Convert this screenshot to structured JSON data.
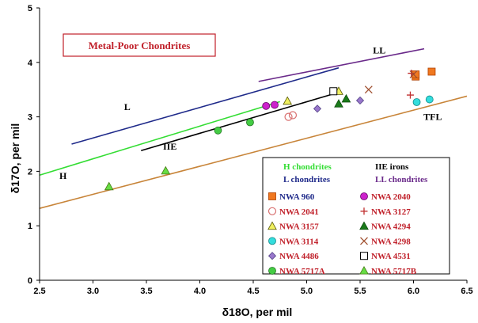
{
  "chart_data": {
    "type": "scatter",
    "title": "Metal-Poor Chondrites",
    "title_color": "#c0202a",
    "xlabel": "δ18O, per mil",
    "ylabel": "δ17O, per mil",
    "xlim": [
      2.5,
      6.5
    ],
    "ylim": [
      0,
      5
    ],
    "x_ticks": [
      "2.5",
      "3.0",
      "3.5",
      "4.0",
      "4.5",
      "5.0",
      "5.5",
      "6.0",
      "6.5"
    ],
    "y_ticks": [
      "0",
      "1",
      "2",
      "3",
      "4",
      "5"
    ],
    "grid": false,
    "legend_placement": "bottom-right",
    "reference_lines": [
      {
        "label": "TFL",
        "color": "#c8853a",
        "points": [
          [
            2.5,
            1.32
          ],
          [
            6.5,
            3.38
          ]
        ]
      },
      {
        "label": "H",
        "color": "#33dd33",
        "points": [
          [
            2.5,
            1.93
          ],
          [
            4.75,
            3.28
          ]
        ]
      },
      {
        "label": "L",
        "color": "#1f2a8a",
        "points": [
          [
            2.8,
            2.5
          ],
          [
            5.3,
            3.9
          ]
        ]
      },
      {
        "label": "LL",
        "color": "#6a2a8a",
        "points": [
          [
            4.55,
            3.65
          ],
          [
            6.1,
            4.25
          ]
        ]
      },
      {
        "label": "IIE",
        "color": "#000000",
        "points": [
          [
            3.45,
            2.38
          ],
          [
            5.3,
            3.45
          ]
        ]
      }
    ],
    "series": [
      {
        "name": "NWA 960",
        "marker": "square",
        "color": "#f07820",
        "stroke": "#b04000",
        "filled": true,
        "points": [
          [
            6.02,
            3.74
          ],
          [
            6.02,
            3.78
          ],
          [
            6.17,
            3.83
          ]
        ]
      },
      {
        "name": "NWA 2040",
        "marker": "circle",
        "color": "#cc22cc",
        "stroke": "#660066",
        "filled": true,
        "points": [
          [
            4.62,
            3.2
          ],
          [
            4.7,
            3.22
          ]
        ]
      },
      {
        "name": "NWA 2041",
        "marker": "circle",
        "color": "#d87070",
        "stroke": "#d87070",
        "filled": false,
        "points": [
          [
            4.83,
            3.0
          ],
          [
            4.87,
            3.03
          ]
        ]
      },
      {
        "name": "NWA 3127",
        "marker": "plus",
        "color": "#c03030",
        "stroke": "#c03030",
        "filled": false,
        "points": [
          [
            5.97,
            3.4
          ],
          [
            5.98,
            3.8
          ]
        ]
      },
      {
        "name": "NWA 3157",
        "marker": "triangle",
        "color": "#f0f060",
        "stroke": "#555500",
        "filled": true,
        "points": [
          [
            4.82,
            3.29
          ],
          [
            5.3,
            3.47
          ]
        ]
      },
      {
        "name": "NWA 4294",
        "marker": "triangle",
        "color": "#1a7a1a",
        "stroke": "#0a4a0a",
        "filled": true,
        "points": [
          [
            5.3,
            3.24
          ],
          [
            5.37,
            3.33
          ]
        ]
      },
      {
        "name": "NWA 3114",
        "marker": "circle",
        "color": "#33dddd",
        "stroke": "#118888",
        "filled": true,
        "points": [
          [
            6.03,
            3.27
          ],
          [
            6.15,
            3.32
          ]
        ]
      },
      {
        "name": "NWA 4298",
        "marker": "x",
        "color": "#a05030",
        "stroke": "#a05030",
        "filled": false,
        "points": [
          [
            5.58,
            3.5
          ],
          [
            6.0,
            3.78
          ]
        ]
      },
      {
        "name": "NWA 4486",
        "marker": "diamond",
        "color": "#9977cc",
        "stroke": "#554488",
        "filled": true,
        "points": [
          [
            5.1,
            3.15
          ],
          [
            5.5,
            3.3
          ]
        ]
      },
      {
        "name": "NWA 4531",
        "marker": "square",
        "color": "#ffffff",
        "stroke": "#000000",
        "filled": false,
        "points": [
          [
            5.25,
            3.47
          ]
        ]
      },
      {
        "name": "NWA 5717A",
        "marker": "circle",
        "color": "#44cc44",
        "stroke": "#227722",
        "filled": true,
        "points": [
          [
            4.17,
            2.75
          ],
          [
            4.47,
            2.9
          ]
        ]
      },
      {
        "name": "NWA 5717B",
        "marker": "triangle",
        "color": "#66dd44",
        "stroke": "#447711",
        "filled": true,
        "points": [
          [
            3.15,
            1.72
          ],
          [
            3.68,
            2.01
          ]
        ]
      }
    ],
    "legend": {
      "header": [
        {
          "text": "H chondrites",
          "color": "#33dd33"
        },
        {
          "text": "IIE irons",
          "color": "#000000"
        },
        {
          "text": "L chondrites",
          "color": "#1f2a8a"
        },
        {
          "text": "LL chondrites",
          "color": "#6a2a8a"
        }
      ],
      "entries": [
        {
          "series": "NWA 960",
          "text_color": "#1f2a8a"
        },
        {
          "series": "NWA 2040",
          "text_color": "#c0202a"
        },
        {
          "series": "NWA 2041",
          "text_color": "#c0202a"
        },
        {
          "series": "NWA 3127",
          "text_color": "#c0202a"
        },
        {
          "series": "NWA 3157",
          "text_color": "#c0202a"
        },
        {
          "series": "NWA 4294",
          "text_color": "#c0202a"
        },
        {
          "series": "NWA 3114",
          "text_color": "#c0202a"
        },
        {
          "series": "NWA 4298",
          "text_color": "#c0202a"
        },
        {
          "series": "NWA 4486",
          "text_color": "#c0202a"
        },
        {
          "series": "NWA 4531",
          "text_color": "#c0202a"
        },
        {
          "series": "NWA 5717A",
          "text_color": "#c0202a"
        },
        {
          "series": "NWA 5717B",
          "text_color": "#c0202a"
        }
      ]
    }
  }
}
